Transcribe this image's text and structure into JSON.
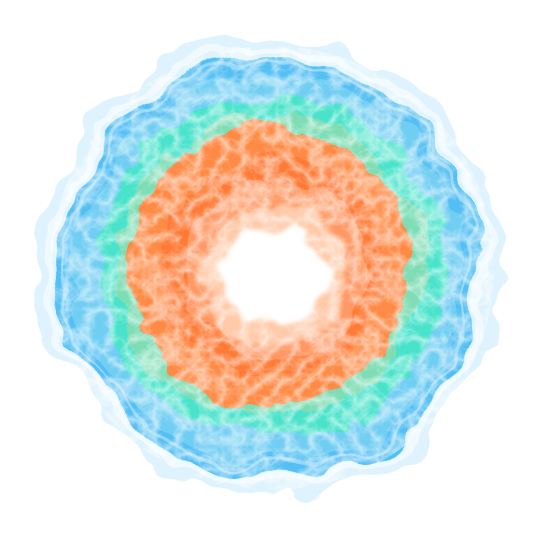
{
  "image": {
    "subject": "",
    "background_color": "#ffffff",
    "palette": {
      "outer_halo": "#cfeefd",
      "outer_blue": "#46b8f5",
      "deep_blue": "#2aa3f0",
      "teal": "#5ee8cf",
      "aqua": "#3ddfc6",
      "mint_transition": "#9ad3a0",
      "orange": "#ff8540",
      "deep_orange": "#ff7030",
      "peach": "#ffc6a0",
      "core_white": "#ffffff"
    }
  }
}
